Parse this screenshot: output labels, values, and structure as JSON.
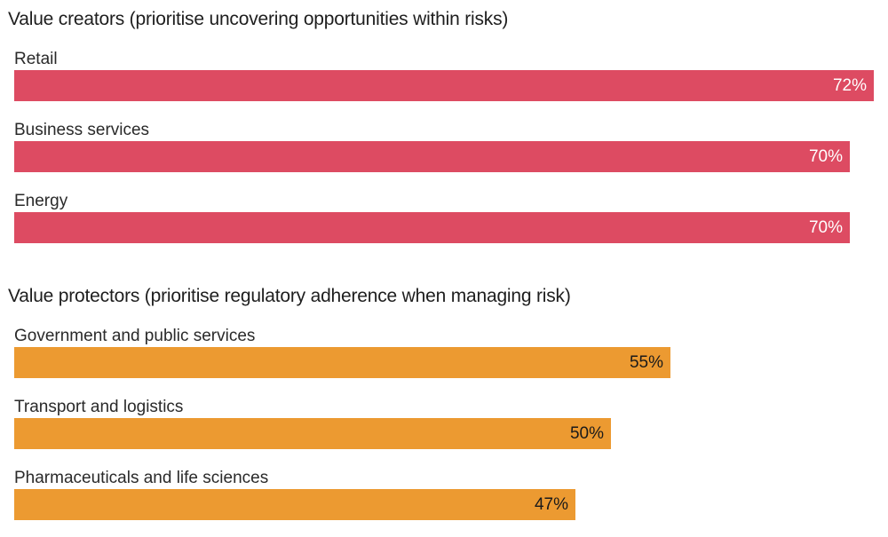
{
  "chart_data": {
    "type": "bar",
    "orientation": "horizontal",
    "value_suffix": "%",
    "colors": {
      "value_creators": "#dd4b62",
      "value_protectors": "#ec9a31"
    },
    "groups": [
      {
        "title": "Value creators (prioritise uncovering opportunities within risks)",
        "color": "#dd4b62",
        "label_color": "#ffffff",
        "categories": [
          "Retail",
          "Business services",
          "Energy"
        ],
        "values": [
          72,
          70,
          70
        ],
        "value_labels": [
          "72%",
          "70%",
          "70%"
        ]
      },
      {
        "title": "Value protectors (prioritise regulatory adherence when managing risk)",
        "color": "#ec9a31",
        "label_color": "#1a1a1a",
        "categories": [
          "Government and public services",
          "Transport and logistics",
          "Pharmaceuticals and life sciences"
        ],
        "values": [
          55,
          50,
          47
        ],
        "value_labels": [
          "55%",
          "50%",
          "47%"
        ]
      }
    ]
  }
}
